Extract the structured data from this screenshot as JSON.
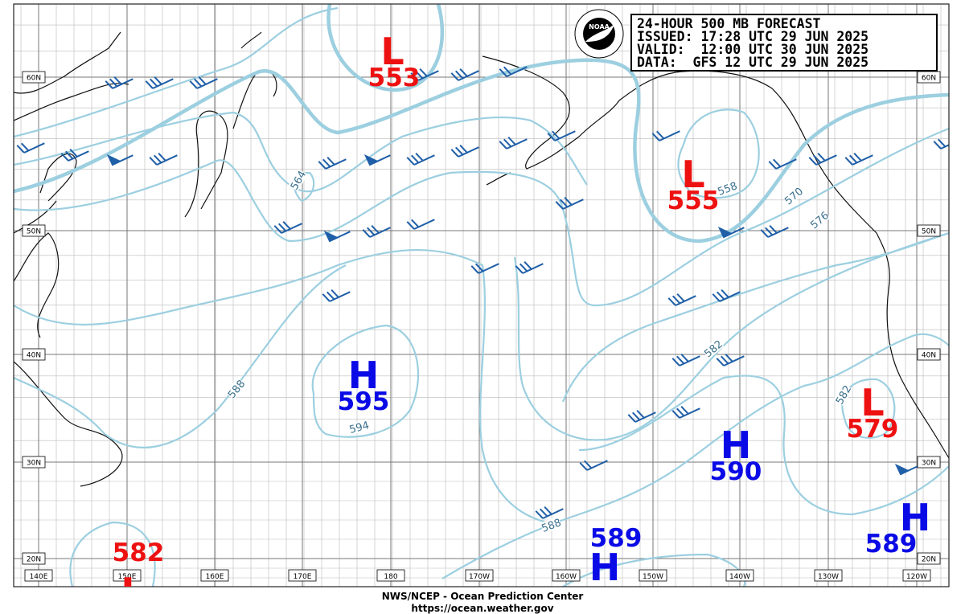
{
  "header": {
    "lines": [
      "24-HOUR 500 MB FORECAST",
      "ISSUED: 17:28 UTC 29 JUN 2025",
      "VALID:  12:00 UTC 30 JUN 2025",
      "DATA:  GFS 12 UTC 29 JUN 2025"
    ]
  },
  "logo": "NOAA",
  "longitudes": [
    "140E",
    "150E",
    "160E",
    "170E",
    "180",
    "170W",
    "160W",
    "150W",
    "140W",
    "130W",
    "120W"
  ],
  "latitudes": [
    "60N",
    "50N",
    "40N",
    "30N",
    "20N"
  ],
  "centers": [
    {
      "letter": "L",
      "value": 553
    },
    {
      "letter": "L",
      "value": 555
    },
    {
      "letter": "H",
      "value": 595
    },
    {
      "letter": "L",
      "value": 579
    },
    {
      "letter": "H",
      "value": 590
    },
    {
      "letter": "H",
      "value": 589
    },
    {
      "letter": "H",
      "value": 589
    },
    {
      "letter": "L",
      "value": 582
    }
  ],
  "contour_labels": [
    564,
    558,
    570,
    576,
    582,
    588,
    594,
    582,
    588
  ],
  "footer": {
    "agency": "NWS/NCEP - Ocean Prediction Center",
    "url": "https://ocean.weather.gov"
  }
}
